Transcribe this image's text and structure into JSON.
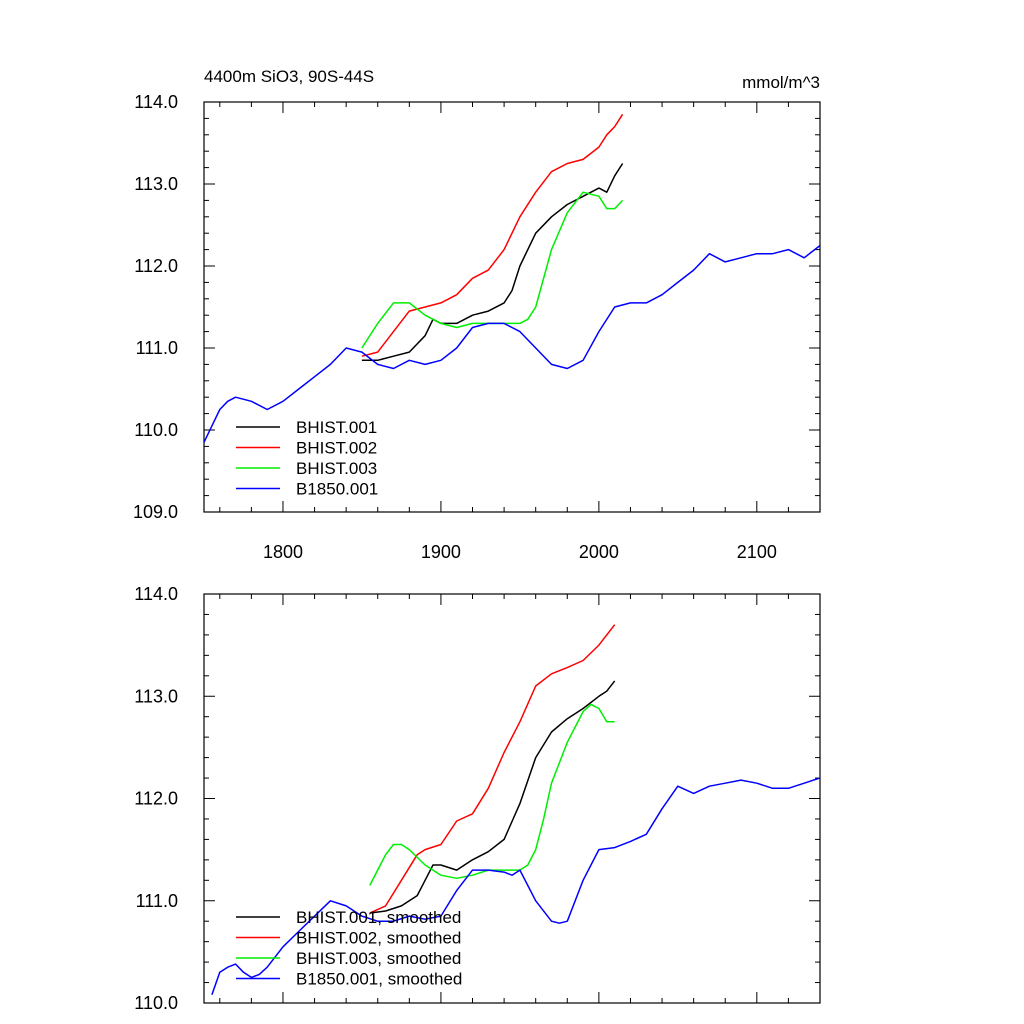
{
  "chart_data": [
    {
      "type": "line",
      "title": "4400m SiO3, 90S-44S",
      "units": "mmol/m^3",
      "xlim": [
        1750,
        2140
      ],
      "ylim": [
        109.0,
        114.0
      ],
      "x_ticks": [
        "1800",
        "1900",
        "2000",
        "2100"
      ],
      "y_ticks": [
        "109.0",
        "110.0",
        "111.0",
        "112.0",
        "113.0",
        "114.0"
      ],
      "legend_position": "lower-left",
      "series": [
        {
          "name": "BHIST.001",
          "color": "#000000",
          "x": [
            1850,
            1860,
            1870,
            1880,
            1890,
            1895,
            1900,
            1910,
            1920,
            1930,
            1940,
            1945,
            1950,
            1960,
            1970,
            1980,
            1990,
            2000,
            2005,
            2010,
            2015
          ],
          "y": [
            110.85,
            110.85,
            110.9,
            110.95,
            111.15,
            111.35,
            111.3,
            111.3,
            111.4,
            111.45,
            111.55,
            111.7,
            112.0,
            112.4,
            112.6,
            112.75,
            112.85,
            112.95,
            112.9,
            113.1,
            113.25
          ]
        },
        {
          "name": "BHIST.002",
          "color": "#ff0000",
          "x": [
            1850,
            1860,
            1870,
            1880,
            1890,
            1900,
            1910,
            1920,
            1930,
            1940,
            1950,
            1960,
            1970,
            1980,
            1990,
            2000,
            2005,
            2010,
            2015
          ],
          "y": [
            110.9,
            110.95,
            111.2,
            111.45,
            111.5,
            111.55,
            111.65,
            111.85,
            111.95,
            112.2,
            112.6,
            112.9,
            113.15,
            113.25,
            113.3,
            113.45,
            113.6,
            113.7,
            113.85
          ]
        },
        {
          "name": "BHIST.003",
          "color": "#00ee00",
          "x": [
            1850,
            1860,
            1870,
            1880,
            1890,
            1900,
            1910,
            1920,
            1930,
            1940,
            1950,
            1955,
            1960,
            1970,
            1980,
            1990,
            2000,
            2005,
            2010,
            2015
          ],
          "y": [
            111.0,
            111.3,
            111.55,
            111.55,
            111.4,
            111.3,
            111.25,
            111.3,
            111.3,
            111.3,
            111.3,
            111.35,
            111.5,
            112.2,
            112.65,
            112.9,
            112.85,
            112.7,
            112.7,
            112.8
          ]
        },
        {
          "name": "B1850.001",
          "color": "#0000ff",
          "x": [
            1750,
            1755,
            1760,
            1765,
            1770,
            1780,
            1790,
            1800,
            1810,
            1820,
            1830,
            1840,
            1850,
            1860,
            1870,
            1880,
            1890,
            1900,
            1910,
            1920,
            1930,
            1940,
            1950,
            1960,
            1970,
            1980,
            1990,
            2000,
            2010,
            2020,
            2030,
            2040,
            2050,
            2060,
            2070,
            2080,
            2090,
            2100,
            2110,
            2120,
            2130,
            2140
          ],
          "y": [
            109.85,
            110.05,
            110.25,
            110.35,
            110.4,
            110.35,
            110.25,
            110.35,
            110.5,
            110.65,
            110.8,
            111.0,
            110.95,
            110.8,
            110.75,
            110.85,
            110.8,
            110.85,
            111.0,
            111.25,
            111.3,
            111.3,
            111.2,
            111.0,
            110.8,
            110.75,
            110.85,
            111.2,
            111.5,
            111.55,
            111.55,
            111.65,
            111.8,
            111.95,
            112.15,
            112.05,
            112.1,
            112.15,
            112.15,
            112.2,
            112.1,
            112.25
          ]
        }
      ]
    },
    {
      "type": "line",
      "xlim": [
        1750,
        2140
      ],
      "ylim": [
        110.0,
        114.0
      ],
      "y_ticks": [
        "110.0",
        "111.0",
        "112.0",
        "113.0",
        "114.0"
      ],
      "legend_position": "lower-left",
      "series": [
        {
          "name": "BHIST.001, smoothed",
          "color": "#000000",
          "x": [
            1855,
            1865,
            1875,
            1885,
            1890,
            1895,
            1900,
            1910,
            1920,
            1930,
            1940,
            1950,
            1960,
            1970,
            1980,
            1990,
            2000,
            2005,
            2010
          ],
          "y": [
            110.88,
            110.9,
            110.95,
            111.05,
            111.2,
            111.35,
            111.35,
            111.3,
            111.4,
            111.48,
            111.6,
            111.95,
            112.4,
            112.65,
            112.78,
            112.88,
            113.0,
            113.05,
            113.15
          ]
        },
        {
          "name": "BHIST.002, smoothed",
          "color": "#ff0000",
          "x": [
            1855,
            1865,
            1875,
            1885,
            1890,
            1900,
            1910,
            1920,
            1930,
            1940,
            1950,
            1960,
            1970,
            1980,
            1990,
            2000,
            2010
          ],
          "y": [
            110.88,
            110.95,
            111.2,
            111.45,
            111.5,
            111.55,
            111.78,
            111.85,
            112.1,
            112.45,
            112.75,
            113.1,
            113.22,
            113.28,
            113.35,
            113.5,
            113.7
          ]
        },
        {
          "name": "BHIST.003, smoothed",
          "color": "#00ee00",
          "x": [
            1855,
            1865,
            1870,
            1875,
            1880,
            1890,
            1900,
            1910,
            1920,
            1930,
            1940,
            1950,
            1955,
            1960,
            1965,
            1970,
            1980,
            1990,
            1995,
            2000,
            2005,
            2010
          ],
          "y": [
            111.15,
            111.45,
            111.55,
            111.55,
            111.5,
            111.35,
            111.25,
            111.22,
            111.25,
            111.3,
            111.3,
            111.3,
            111.35,
            111.5,
            111.8,
            112.15,
            112.55,
            112.85,
            112.92,
            112.88,
            112.75,
            112.75
          ]
        },
        {
          "name": "B1850.001, smoothed",
          "color": "#0000ff",
          "x": [
            1755,
            1760,
            1765,
            1770,
            1775,
            1780,
            1785,
            1790,
            1800,
            1810,
            1820,
            1830,
            1840,
            1850,
            1860,
            1870,
            1880,
            1890,
            1900,
            1910,
            1920,
            1930,
            1940,
            1945,
            1950,
            1960,
            1970,
            1975,
            1980,
            1990,
            2000,
            2010,
            2020,
            2030,
            2040,
            2050,
            2060,
            2070,
            2080,
            2090,
            2100,
            2110,
            2120,
            2130,
            2140
          ],
          "y": [
            110.08,
            110.3,
            110.35,
            110.38,
            110.3,
            110.25,
            110.28,
            110.35,
            110.55,
            110.7,
            110.85,
            111.0,
            110.95,
            110.85,
            110.8,
            110.8,
            110.85,
            110.82,
            110.85,
            111.1,
            111.3,
            111.3,
            111.28,
            111.25,
            111.3,
            111.0,
            110.8,
            110.78,
            110.8,
            111.2,
            111.5,
            111.52,
            111.58,
            111.65,
            111.9,
            112.12,
            112.05,
            112.12,
            112.15,
            112.18,
            112.15,
            112.1,
            112.1,
            112.15,
            112.2
          ]
        }
      ]
    }
  ]
}
